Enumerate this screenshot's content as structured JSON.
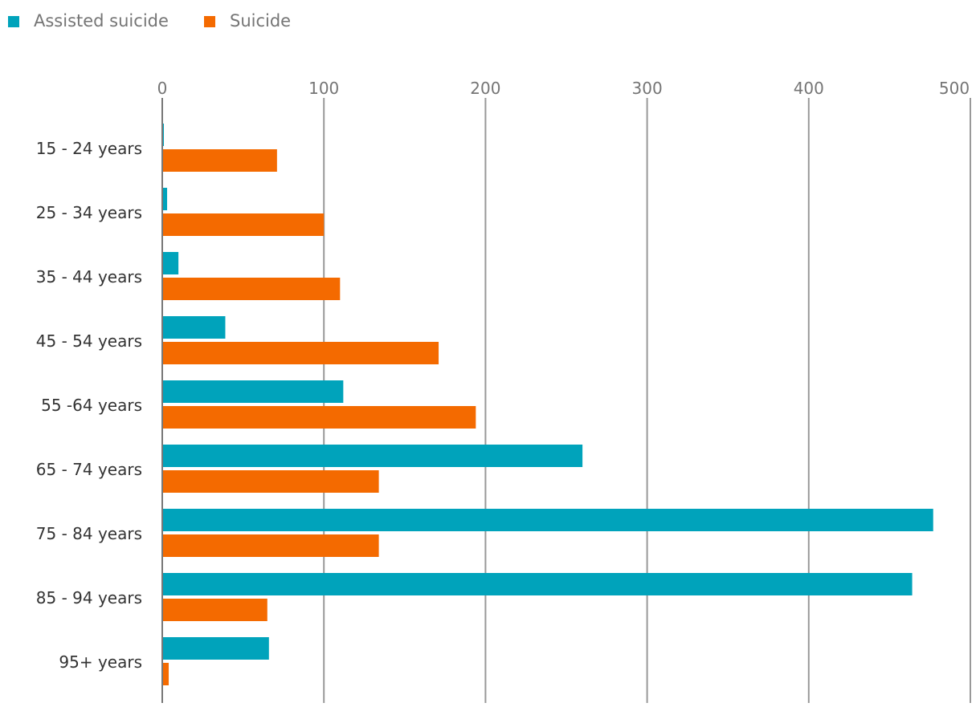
{
  "chart_data": {
    "type": "bar",
    "orientation": "horizontal",
    "title": "",
    "xlabel": "",
    "ylabel": "",
    "xlim": [
      0,
      500
    ],
    "x_ticks": [
      "0",
      "100",
      "200",
      "300",
      "400",
      "500"
    ],
    "grid": true,
    "legend_position": "top-left",
    "categories": [
      "15 - 24 years",
      "25 - 34 years",
      "35 - 44 years",
      "45 - 54 years",
      "55 -64 years",
      "65 - 74 years",
      "75 - 84 years",
      "85 - 94 years",
      "95+ years"
    ],
    "series": [
      {
        "name": "Assisted suicide",
        "color": "#00a3bb",
        "values": [
          1,
          3,
          10,
          39,
          112,
          260,
          477,
          464,
          66
        ]
      },
      {
        "name": "Suicide",
        "color": "#f46a00",
        "values": [
          71,
          100,
          110,
          171,
          194,
          134,
          134,
          65,
          4
        ]
      }
    ]
  }
}
